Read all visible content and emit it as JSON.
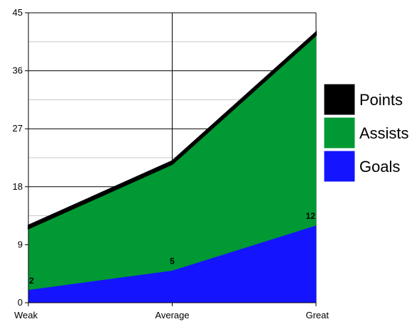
{
  "chart_data": {
    "type": "area",
    "stacked": true,
    "categories": [
      "Weak",
      "Average",
      "Great"
    ],
    "series": [
      {
        "name": "Goals",
        "values": [
          2,
          5,
          12
        ],
        "color": "#1414ff",
        "data_labels": [
          "2",
          "5",
          "12"
        ]
      },
      {
        "name": "Assists",
        "values": [
          9.5,
          16.5,
          29.5
        ],
        "color": "#009933"
      },
      {
        "name": "Points",
        "values": [
          0.5,
          0.5,
          0.5
        ],
        "color": "#000000"
      }
    ],
    "ylim": [
      0,
      45
    ],
    "yticks": [
      0,
      9,
      18,
      27,
      36,
      45
    ],
    "grid": true,
    "legend_position": "right",
    "legend_order": [
      "Points",
      "Assists",
      "Goals"
    ],
    "title": "",
    "xlabel": "",
    "ylabel": ""
  }
}
